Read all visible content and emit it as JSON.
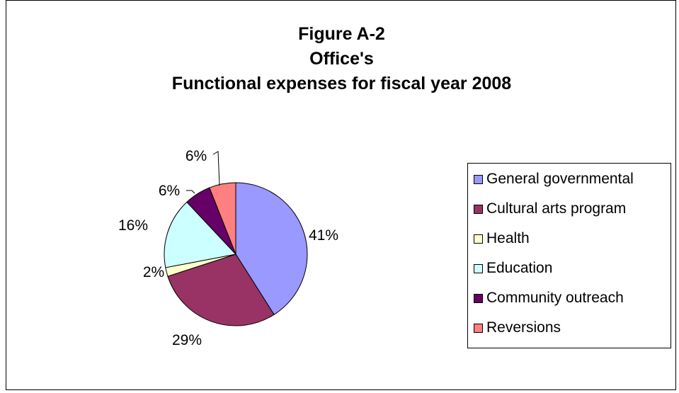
{
  "title_lines": [
    "Figure A-2",
    "Office's",
    "Functional expenses for fiscal year 2008"
  ],
  "chart_data": {
    "type": "pie",
    "title": "Figure A-2 Office's Functional expenses for fiscal year 2008",
    "slices": [
      {
        "label": "General governmental",
        "value": 41,
        "display": "41%",
        "color": "#9999ff"
      },
      {
        "label": "Cultural arts program",
        "value": 29,
        "display": "29%",
        "color": "#993366"
      },
      {
        "label": "Health",
        "value": 2,
        "display": "2%",
        "color": "#ffffcc"
      },
      {
        "label": "Education",
        "value": 16,
        "display": "16%",
        "color": "#ccffff"
      },
      {
        "label": "Community outreach",
        "value": 6,
        "display": "6%",
        "color": "#660066"
      },
      {
        "label": "Reversions",
        "value": 6,
        "display": "6%",
        "color": "#ff8080"
      }
    ],
    "legend_position": "right",
    "border_color": "#000000"
  }
}
